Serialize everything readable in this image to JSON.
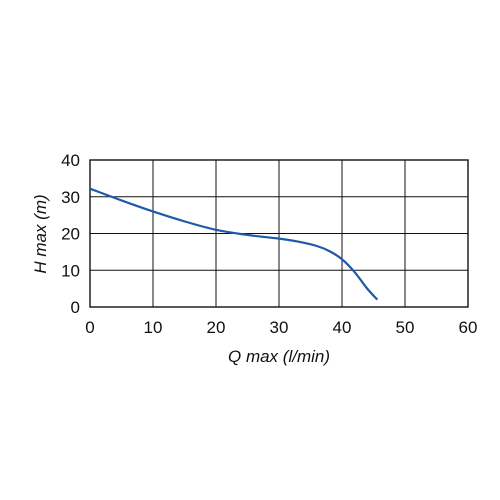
{
  "chart_data": {
    "type": "line",
    "xlabel": "Q max (l/min)",
    "ylabel": "H max (m)",
    "xlim": [
      0,
      60
    ],
    "ylim": [
      0,
      40
    ],
    "xticks": [
      0,
      10,
      20,
      30,
      40,
      50,
      60
    ],
    "yticks": [
      0,
      10,
      20,
      30,
      40
    ],
    "grid": true,
    "series": [
      {
        "color": "#1f5aa6",
        "x": [
          0,
          5,
          10,
          15,
          20,
          25,
          30,
          33,
          36,
          38,
          40,
          42,
          44,
          45.5
        ],
        "y": [
          32.2,
          29.0,
          26.0,
          23.3,
          21.0,
          19.6,
          18.6,
          17.8,
          16.6,
          15.2,
          13.0,
          9.5,
          5.0,
          2.2
        ]
      }
    ]
  }
}
